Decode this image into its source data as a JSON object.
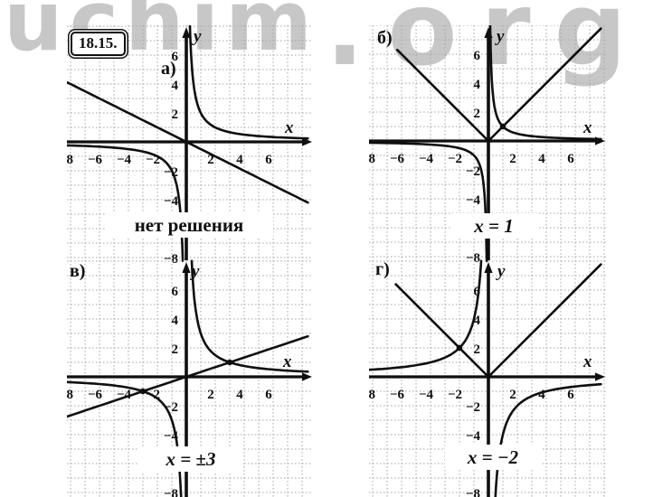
{
  "watermark": {
    "part1": "uchim",
    "part2": ".org"
  },
  "problem_number": "18.15.",
  "colors": {
    "ink": "#0f0f0f",
    "grid": "#a8a8a8",
    "watermark": "#c7c7c7",
    "background": "#ffffff"
  },
  "axis": {
    "x_label": "x",
    "y_label": "y",
    "x_ticks": [
      -8,
      -6,
      -4,
      -2,
      2,
      4,
      6
    ],
    "y_ticks": [
      6,
      4,
      2,
      -2,
      -4,
      -8
    ],
    "grid": true,
    "unit_per_cell": 1
  },
  "chart_data": [
    {
      "id": "a",
      "type": "line",
      "panel_label": "а)",
      "answer": "нет решения",
      "xlim": [
        -8,
        8
      ],
      "ylim": [
        -8,
        8
      ],
      "functions": [
        {
          "kind": "hyperbola",
          "k": 2,
          "label": "y = 2/x"
        },
        {
          "kind": "linear",
          "m": -0.5,
          "b": 0,
          "label": "y = −x/2"
        }
      ],
      "intersections": [],
      "x_solutions": []
    },
    {
      "id": "b",
      "type": "line",
      "panel_label": "б)",
      "answer": "x = 1",
      "xlim": [
        -8,
        8
      ],
      "ylim": [
        -8,
        8
      ],
      "functions": [
        {
          "kind": "abs",
          "left_end": -6.3,
          "label": "y = |x|"
        },
        {
          "kind": "hyperbola",
          "k": 1,
          "label": "y = 1/x"
        }
      ],
      "intersections": [
        {
          "x": 1,
          "y": 1
        }
      ],
      "x_solutions": [
        1
      ]
    },
    {
      "id": "v",
      "type": "line",
      "panel_label": "в)",
      "answer": "x = ±3",
      "xlim": [
        -8,
        8
      ],
      "ylim": [
        -8,
        8
      ],
      "functions": [
        {
          "kind": "hyperbola",
          "k": 3,
          "label": "y = 3/x"
        },
        {
          "kind": "linear",
          "m": 0.3333,
          "b": 0,
          "label": "y = x/3"
        }
      ],
      "intersections": [
        {
          "x": 3,
          "y": 1
        },
        {
          "x": -3,
          "y": -1
        }
      ],
      "x_solutions": [
        3,
        -3
      ]
    },
    {
      "id": "g",
      "type": "line",
      "panel_label": "г)",
      "answer": "x = −2",
      "xlim": [
        -8,
        8
      ],
      "ylim": [
        -8,
        8
      ],
      "functions": [
        {
          "kind": "abs",
          "left_end": -6.4,
          "label": "y = |x|"
        },
        {
          "kind": "hyperbola",
          "k": -4,
          "label": "y = −4/x"
        }
      ],
      "intersections": [
        {
          "x": -2,
          "y": 2
        }
      ],
      "x_solutions": [
        -2
      ]
    }
  ]
}
